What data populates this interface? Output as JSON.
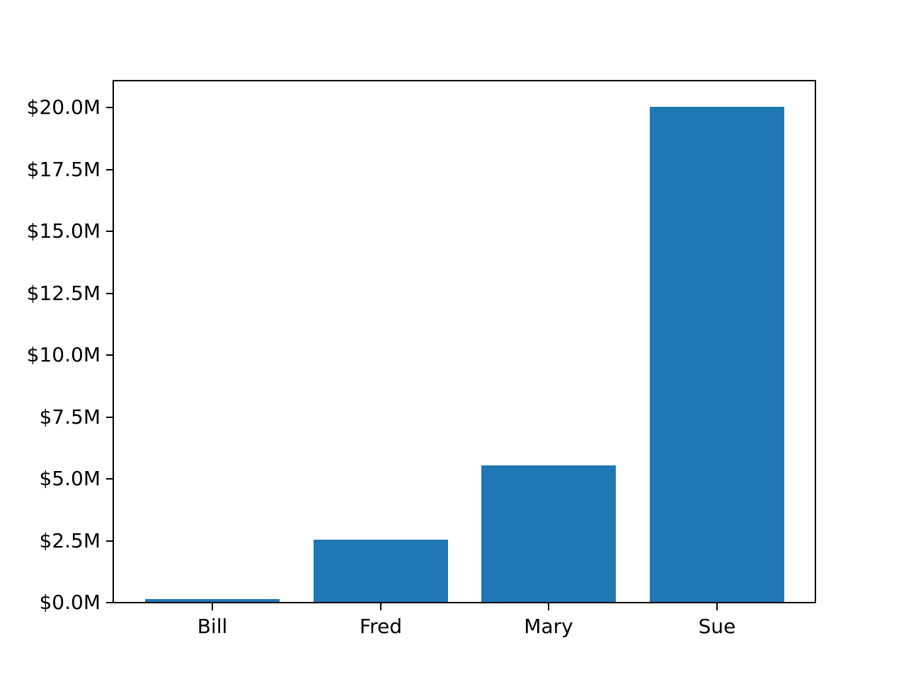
{
  "chart_data": {
    "type": "bar",
    "title": "",
    "xlabel": "",
    "ylabel": "",
    "categories": [
      "Bill",
      "Fred",
      "Mary",
      "Sue"
    ],
    "values": [
      0.1,
      2.5,
      5.5,
      20.0
    ],
    "values_unit": "USD millions",
    "series_name": "",
    "bar_color": "#1f77b4",
    "axis_color": "#000000",
    "text_color": "#000000",
    "background_color": "#ffffff",
    "grid": false,
    "legend": null,
    "ylim": [
      0,
      21.1
    ],
    "y_ticks": [
      {
        "value": 0.0,
        "label": "$0.0M"
      },
      {
        "value": 2.5,
        "label": "$2.5M"
      },
      {
        "value": 5.0,
        "label": "$5.0M"
      },
      {
        "value": 7.5,
        "label": "$7.5M"
      },
      {
        "value": 10.0,
        "label": "$10.0M"
      },
      {
        "value": 12.5,
        "label": "$12.5M"
      },
      {
        "value": 15.0,
        "label": "$15.0M"
      },
      {
        "value": 17.5,
        "label": "$17.5M"
      },
      {
        "value": 20.0,
        "label": "$20.0M"
      }
    ]
  }
}
